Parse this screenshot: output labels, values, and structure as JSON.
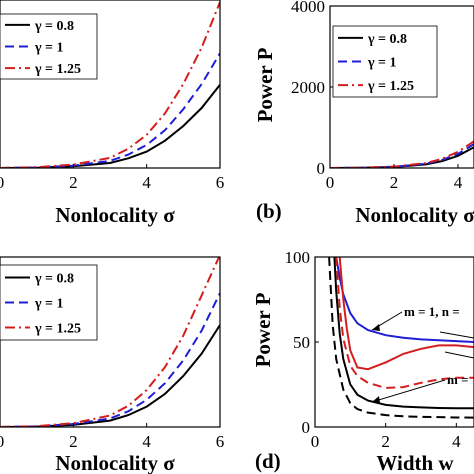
{
  "chart_data": [
    {
      "id": "top-left",
      "type": "line",
      "xlabel": "Nonlocality σ",
      "ylabel": "",
      "panel_label": "",
      "xlim": [
        0,
        6
      ],
      "ylim": [
        0,
        4000
      ],
      "xticks": [
        "0",
        "2",
        "4",
        "6"
      ],
      "yticks": [],
      "legend": {
        "placement": "top-left",
        "entries": [
          "γ = 0.8",
          "γ = 1",
          "γ = 1.25"
        ]
      },
      "series": [
        {
          "name": "γ = 0.8",
          "color": "#000000",
          "dash": "solid",
          "x": [
            0,
            1,
            2,
            3,
            3.5,
            4,
            4.5,
            5,
            5.5,
            6
          ],
          "y": [
            0,
            8,
            40,
            120,
            230,
            390,
            650,
            1000,
            1430,
            1980
          ]
        },
        {
          "name": "γ = 1",
          "color": "#1f1fd6",
          "dash": "dashed",
          "x": [
            0,
            1,
            2,
            3,
            3.5,
            4,
            4.5,
            5,
            5.5,
            6
          ],
          "y": [
            0,
            12,
            55,
            170,
            320,
            550,
            900,
            1400,
            2000,
            2730
          ]
        },
        {
          "name": "γ = 1.25",
          "color": "#d41d1d",
          "dash": "dashdot",
          "x": [
            0,
            1,
            2,
            3,
            3.5,
            4,
            4.5,
            5,
            5.5,
            6
          ],
          "y": [
            0,
            18,
            80,
            240,
            460,
            790,
            1300,
            2000,
            2870,
            3950
          ]
        }
      ]
    },
    {
      "id": "top-right",
      "type": "line",
      "xlabel": "Nonlocality σ",
      "ylabel": "Power P",
      "panel_label": "(b)",
      "xlim": [
        0,
        4.5
      ],
      "ylim": [
        0,
        4000
      ],
      "xticks": [
        "0",
        "2",
        "4"
      ],
      "yticks": [
        "0",
        "2000",
        "4000"
      ],
      "legend": {
        "placement": "top-left",
        "entries": [
          "γ = 0.8",
          "γ = 1",
          "γ = 1.25"
        ]
      },
      "series": [
        {
          "name": "γ = 0.8",
          "color": "#000000",
          "dash": "solid",
          "x": [
            0,
            1,
            2,
            3,
            3.5,
            4,
            4.5
          ],
          "y": [
            0,
            5,
            25,
            90,
            170,
            300,
            510
          ]
        },
        {
          "name": "γ = 1",
          "color": "#1f1fd6",
          "dash": "dashed",
          "x": [
            0,
            1,
            2,
            3,
            3.5,
            4,
            4.5
          ],
          "y": [
            0,
            6,
            30,
            105,
            200,
            350,
            590
          ]
        },
        {
          "name": "γ = 1.25",
          "color": "#d41d1d",
          "dash": "dashdot",
          "x": [
            0,
            1,
            2,
            3,
            3.5,
            4,
            4.5
          ],
          "y": [
            0,
            7,
            35,
            120,
            225,
            400,
            660
          ]
        }
      ]
    },
    {
      "id": "bottom-left",
      "type": "line",
      "xlabel": "Nonlocality σ",
      "ylabel": "",
      "panel_label": "",
      "xlim": [
        0,
        6
      ],
      "ylim": [
        0,
        4000
      ],
      "xticks": [
        "0",
        "2",
        "4",
        "6"
      ],
      "yticks": [],
      "legend": {
        "placement": "top-left",
        "entries": [
          "γ = 0.8",
          "γ = 1",
          "γ = 1.25"
        ]
      },
      "series": [
        {
          "name": "γ = 0.8",
          "color": "#000000",
          "dash": "solid",
          "x": [
            0,
            1,
            2,
            3,
            3.5,
            4,
            4.5,
            5,
            5.5,
            6
          ],
          "y": [
            0,
            10,
            50,
            150,
            280,
            480,
            780,
            1200,
            1730,
            2400
          ]
        },
        {
          "name": "γ = 1",
          "color": "#1f1fd6",
          "dash": "dashed",
          "x": [
            0,
            1,
            2,
            3,
            3.5,
            4,
            4.5,
            5,
            5.5,
            6
          ],
          "y": [
            0,
            14,
            70,
            200,
            370,
            640,
            1030,
            1570,
            2270,
            3150
          ]
        },
        {
          "name": "γ = 1.25",
          "color": "#d41d1d",
          "dash": "dashdot",
          "x": [
            0,
            1,
            2,
            3,
            3.5,
            4,
            4.5,
            5,
            5.5,
            6
          ],
          "y": [
            0,
            18,
            90,
            270,
            500,
            870,
            1410,
            2150,
            3100,
            4050
          ]
        }
      ]
    },
    {
      "id": "bottom-right",
      "type": "line",
      "xlabel": "Width w",
      "ylabel": "Power P",
      "panel_label": "(d)",
      "xlim": [
        0,
        4.5
      ],
      "ylim": [
        0,
        100
      ],
      "xticks": [
        "0",
        "2",
        "4"
      ],
      "yticks": [
        "0",
        "50",
        "100"
      ],
      "annotations": [
        "m = 1, n =",
        "m ="
      ],
      "series": [
        {
          "color": "#1f1fd6",
          "dash": "solid",
          "x": [
            0.6,
            0.7,
            0.8,
            1,
            1.2,
            1.5,
            2,
            2.5,
            3,
            3.5,
            4,
            4.5
          ],
          "y": [
            100,
            88,
            78,
            67,
            61,
            57,
            54,
            52.5,
            51.5,
            51,
            50.5,
            50
          ]
        },
        {
          "color": "#d41d1d",
          "dash": "solid",
          "x": [
            0.7,
            0.8,
            0.9,
            1,
            1.2,
            1.5,
            2,
            2.5,
            3,
            3.5,
            4,
            4.5
          ],
          "y": [
            100,
            75,
            58,
            45,
            35,
            34,
            38,
            43,
            46,
            48,
            48,
            47
          ]
        },
        {
          "color": "#000000",
          "dash": "solid",
          "x": [
            0.55,
            0.6,
            0.7,
            0.8,
            1,
            1.2,
            1.5,
            2,
            2.5,
            3,
            3.5,
            4,
            4.5
          ],
          "y": [
            100,
            80,
            55,
            40,
            25,
            19,
            15.5,
            13,
            12,
            11.5,
            11.2,
            11,
            11
          ]
        },
        {
          "color": "#d41d1d",
          "dash": "dashed",
          "x": [
            0.6,
            0.7,
            0.8,
            1,
            1.2,
            1.5,
            2,
            2.5,
            3,
            3.5,
            4,
            4.5
          ],
          "y": [
            100,
            70,
            52,
            36,
            30,
            26,
            23,
            23.5,
            26,
            28,
            29,
            29
          ]
        },
        {
          "color": "#000000",
          "dash": "dashed",
          "x": [
            0.4,
            0.5,
            0.6,
            0.8,
            1,
            1.2,
            1.5,
            2,
            2.5,
            3,
            3.5,
            4,
            4.5
          ],
          "y": [
            100,
            60,
            40,
            22,
            14,
            10.5,
            8.5,
            7,
            6.3,
            6,
            5.8,
            5.6,
            5.5
          ]
        }
      ]
    }
  ]
}
